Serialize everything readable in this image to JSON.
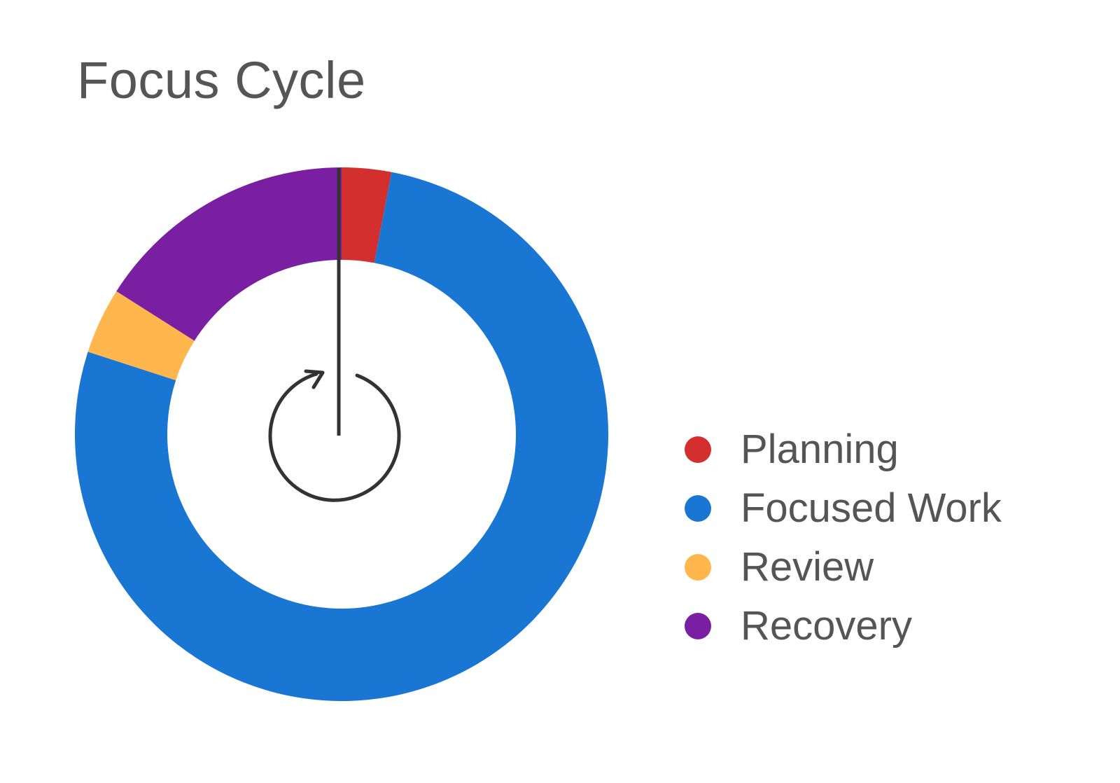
{
  "chart_data": {
    "type": "pie",
    "title": "Focus Cycle",
    "donut": true,
    "start_angle_deg": 0,
    "categories": [
      "Planning",
      "Focused Work",
      "Review",
      "Recovery"
    ],
    "values": [
      3,
      77,
      4,
      16
    ],
    "colors": [
      "#D32F2F",
      "#1976D2",
      "#FFB74D",
      "#7B1FA2"
    ],
    "legend_position": "right",
    "center_icon": "cycle-arrow-icon"
  }
}
